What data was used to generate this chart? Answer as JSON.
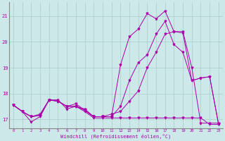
{
  "xlabel": "Windchill (Refroidissement éolien,°C)",
  "bg_color": "#cce8e8",
  "grid_color": "#aacccc",
  "line_color": "#aa00aa",
  "xlim": [
    -0.5,
    23.5
  ],
  "ylim": [
    16.65,
    21.55
  ],
  "yticks": [
    17,
    18,
    19,
    20,
    21
  ],
  "xticks": [
    0,
    1,
    2,
    3,
    4,
    5,
    6,
    7,
    8,
    9,
    10,
    11,
    12,
    13,
    14,
    15,
    16,
    17,
    18,
    19,
    20,
    21,
    22,
    23
  ],
  "series1_x": [
    0,
    1,
    2,
    3,
    4,
    5,
    6,
    7,
    8,
    9,
    10,
    11,
    12,
    13,
    14,
    15,
    16,
    17,
    18,
    19,
    20,
    21,
    22,
    23
  ],
  "series1_y": [
    17.55,
    17.3,
    16.9,
    17.1,
    17.75,
    17.75,
    17.4,
    17.5,
    17.3,
    17.05,
    17.05,
    17.05,
    17.05,
    17.05,
    17.05,
    17.05,
    17.05,
    17.05,
    17.05,
    17.05,
    17.05,
    17.05,
    16.8,
    16.8
  ],
  "series2_x": [
    0,
    1,
    2,
    3,
    4,
    5,
    6,
    7,
    8,
    9,
    10,
    11,
    12,
    13,
    14,
    15,
    16,
    17,
    18,
    19,
    20,
    21,
    22,
    23
  ],
  "series2_y": [
    17.55,
    17.3,
    17.1,
    17.15,
    17.75,
    17.7,
    17.5,
    17.5,
    17.35,
    17.1,
    17.1,
    17.1,
    17.5,
    18.5,
    19.2,
    19.5,
    20.3,
    20.8,
    19.9,
    19.6,
    18.5,
    18.6,
    18.65,
    16.8
  ],
  "series3_x": [
    0,
    1,
    2,
    3,
    4,
    5,
    6,
    7,
    8,
    9,
    10,
    11,
    12,
    13,
    14,
    15,
    16,
    17,
    18,
    19,
    20,
    21,
    22,
    23
  ],
  "series3_y": [
    17.55,
    17.3,
    17.1,
    17.15,
    17.75,
    17.7,
    17.5,
    17.5,
    17.4,
    17.1,
    17.1,
    17.1,
    19.1,
    20.2,
    20.5,
    21.1,
    20.9,
    21.2,
    20.4,
    20.35,
    18.5,
    18.6,
    18.65,
    16.8
  ],
  "series4_x": [
    0,
    1,
    2,
    3,
    4,
    5,
    6,
    7,
    8,
    9,
    10,
    11,
    12,
    13,
    14,
    15,
    16,
    17,
    18,
    19,
    20,
    21,
    22,
    23
  ],
  "series4_y": [
    17.55,
    17.3,
    17.1,
    17.2,
    17.75,
    17.7,
    17.5,
    17.6,
    17.35,
    17.1,
    17.1,
    17.2,
    17.3,
    17.7,
    18.1,
    19.0,
    19.6,
    20.3,
    20.4,
    20.4,
    19.0,
    16.85,
    16.85,
    16.85
  ],
  "marker_size": 2.0,
  "line_width": 0.7,
  "tick_label_fontsize": 4.0,
  "xlabel_fontsize": 5.0
}
